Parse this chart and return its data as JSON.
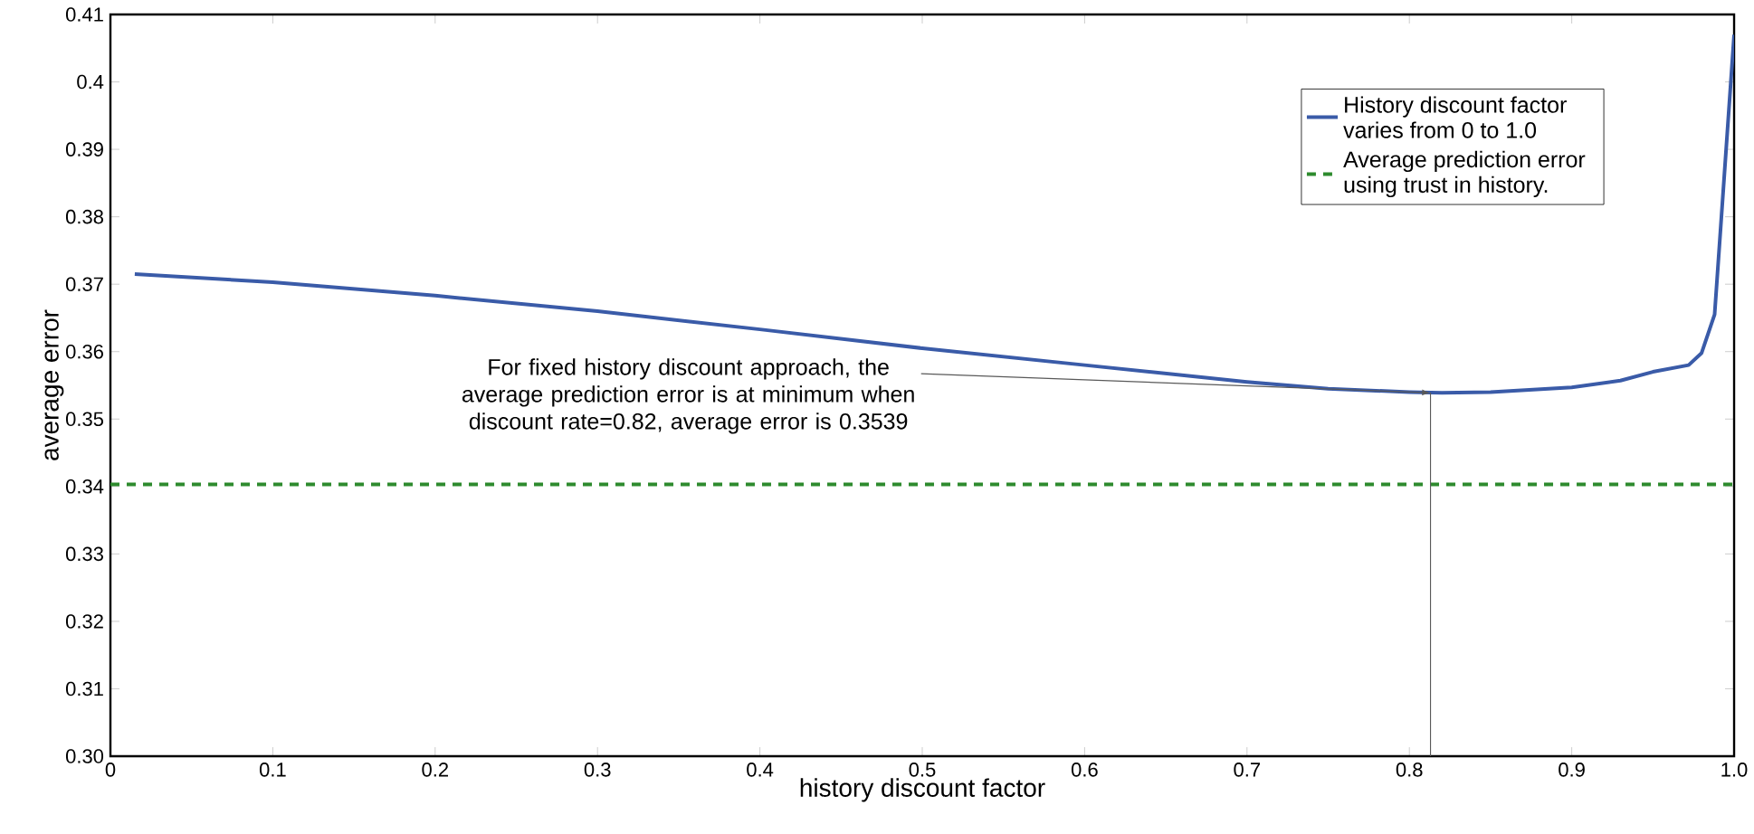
{
  "chart_data": {
    "type": "line",
    "xlabel": "history discount factor",
    "ylabel": "average error",
    "series": [
      {
        "name": "History discount factor varies from 0 to 1.0",
        "color": "#3a5ba8",
        "line_style": "solid",
        "x": [
          0.015,
          0.1,
          0.2,
          0.3,
          0.4,
          0.5,
          0.6,
          0.7,
          0.75,
          0.8,
          0.82,
          0.85,
          0.9,
          0.93,
          0.95,
          0.972,
          0.98,
          0.988,
          1.0
        ],
        "values": [
          0.3715,
          0.3703,
          0.3683,
          0.366,
          0.3633,
          0.3605,
          0.358,
          0.3555,
          0.3545,
          0.354,
          0.3539,
          0.354,
          0.3547,
          0.3557,
          0.357,
          0.358,
          0.3598,
          0.3655,
          0.407
        ]
      },
      {
        "name": "Average prediction error using trust in history.",
        "color": "#2e8b2e",
        "line_style": "dashed",
        "x": [
          0,
          1.0
        ],
        "values": [
          0.3403,
          0.3403
        ]
      }
    ],
    "xlim": [
      0,
      1.0
    ],
    "ylim": [
      0.3,
      0.41
    ],
    "xticks": [
      0,
      0.1,
      0.2,
      0.3,
      0.4,
      0.5,
      0.6,
      0.7,
      0.8,
      0.9,
      {
        "value": 1.0,
        "label": "1.0"
      }
    ],
    "ref_lines": [
      {
        "axis": "x",
        "value": 0.813,
        "color": "#595959"
      }
    ],
    "yticks": [
      {
        "value": 0.3,
        "label": "0.30"
      },
      0.31,
      0.32,
      0.33,
      0.34,
      0.35,
      0.36,
      0.37,
      0.38,
      0.39,
      0.4,
      0.41
    ],
    "legend": "top right",
    "grid": false,
    "marker": "none",
    "annotations": [
      {
        "text": "For fixed history discount approach, the average prediction error is at minimum when discount rate=0.82, average error is 0.3539",
        "x": 0.813,
        "y": 0.3539
      }
    ]
  }
}
